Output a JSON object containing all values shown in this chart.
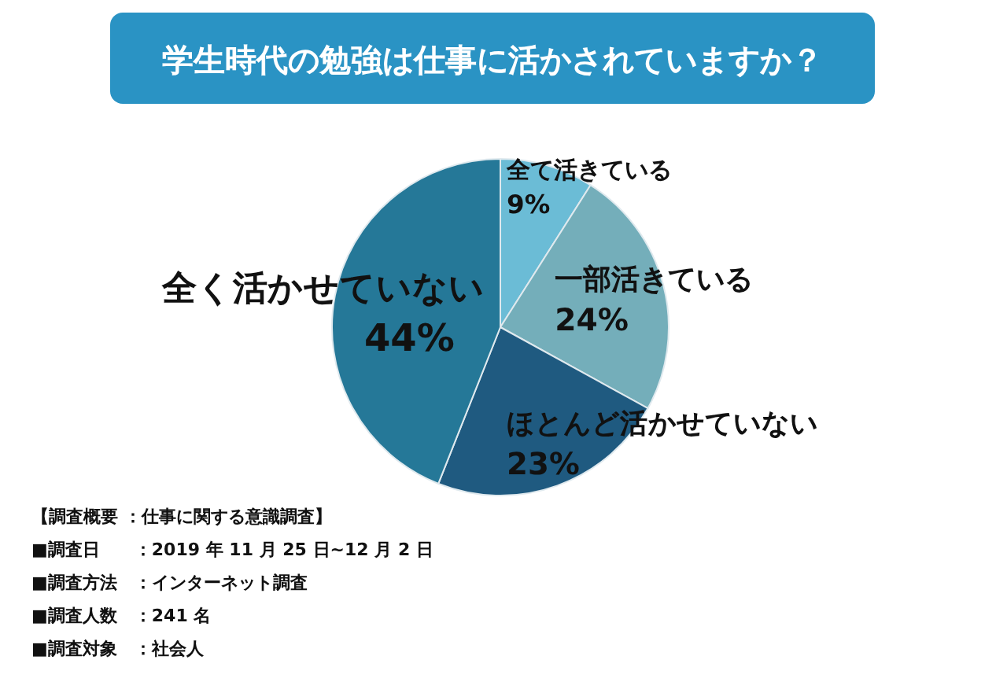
{
  "chart_data": {
    "type": "pie",
    "title": "学生時代の勉強は仕事に活かされていますか？",
    "categories": [
      "全て活きている",
      "一部活きている",
      "ほとんど活かせていない",
      "全く活かせていない"
    ],
    "values": [
      9,
      24,
      23,
      44
    ],
    "value_labels": [
      "9%",
      "24%",
      "23%",
      "44%"
    ],
    "colors": [
      "#6bbcd6",
      "#74aeba",
      "#1f5a80",
      "#257898"
    ],
    "annotations": [
      "【調査概要 ：仕事に関する意識調査】",
      "■調査日　　：2019 年 11 月 25 日~12 月 2 日",
      "■調査方法　：インターネット調査",
      "■調査人数　：241 名",
      "■調査対象　：社会人"
    ]
  }
}
